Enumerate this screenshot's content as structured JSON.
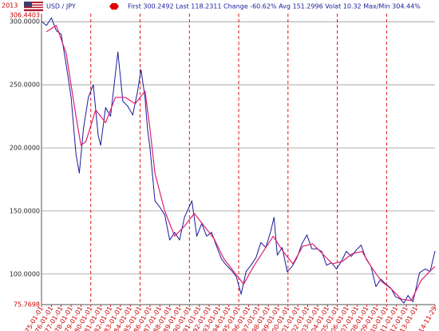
{
  "chart_data": {
    "type": "line",
    "corner_label": "2013",
    "title": "USD / JPY",
    "stats_text": "First 300.2492 Last 118.2311 Change -60.62% Avg 151.2996 Volat 10.32 Max/Min 304.44%",
    "ylim": [
      75.7698,
      306.4403
    ],
    "yticks": [
      {
        "value": 100,
        "label": "100.0000"
      },
      {
        "value": 150,
        "label": "150.0000"
      },
      {
        "value": 200,
        "label": "200.0000"
      },
      {
        "value": 250,
        "label": "250.0000"
      },
      {
        "value": 300,
        "label": "300.0000"
      }
    ],
    "xlim": [
      "1975-01-01",
      "2014-11-29"
    ],
    "xticks": [
      "1975-01-01",
      "1976-01-01",
      "1977-01-01",
      "1978-01-01",
      "1979-01-01",
      "1980-01-01",
      "1981-01-01",
      "1982-01-01",
      "1983-01-01",
      "1984-01-01",
      "1985-01-01",
      "1986-01-01",
      "1987-01-01",
      "1988-01-01",
      "1989-01-01",
      "1990-01-01",
      "1991-01-01",
      "1992-01-01",
      "1993-01-01",
      "1994-01-01",
      "1995-01-01",
      "1996-01-01",
      "1997-01-01",
      "1998-01-01",
      "1999-01-01",
      "2000-01-01",
      "2001-01-01",
      "2002-01-01",
      "2003-01-01",
      "2004-01-01",
      "2005-01-01",
      "2006-01-01",
      "2007-01-01",
      "2008-01-01",
      "2009-01-01",
      "2010-01-01",
      "2011-01-01",
      "2012-01-01",
      "2013-01-01",
      "2014-11-29"
    ],
    "xgrid": [
      "1980-01-01",
      "1985-01-01",
      "1990-01-01",
      "1995-01-01",
      "2000-01-01",
      "2005-01-01",
      "2010-01-01"
    ],
    "grid": true,
    "series": [
      {
        "color": "#1a1a9c",
        "x": [
          "1975-01-01",
          "1975-07-01",
          "1976-01-01",
          "1976-07-01",
          "1977-01-01",
          "1977-07-01",
          "1978-01-01",
          "1978-07-01",
          "1978-11-01",
          "1979-04-01",
          "1979-10-01",
          "1980-04-01",
          "1980-10-01",
          "1981-01-01",
          "1981-07-01",
          "1982-01-01",
          "1982-10-01",
          "1983-04-01",
          "1983-10-01",
          "1984-04-01",
          "1984-10-01",
          "1985-02-01",
          "1985-07-01",
          "1985-10-01",
          "1986-01-01",
          "1986-07-01",
          "1987-01-01",
          "1987-07-01",
          "1988-01-01",
          "1988-07-01",
          "1989-01-01",
          "1989-07-01",
          "1990-04-01",
          "1990-10-01",
          "1991-04-01",
          "1991-10-01",
          "1992-04-01",
          "1992-10-01",
          "1993-04-01",
          "1993-10-01",
          "1994-04-01",
          "1994-10-01",
          "1995-04-01",
          "1995-10-01",
          "1996-04-01",
          "1996-10-01",
          "1997-04-01",
          "1997-10-01",
          "1998-04-01",
          "1998-08-01",
          "1998-12-01",
          "1999-06-01",
          "1999-12-01",
          "2000-06-01",
          "2000-12-01",
          "2001-06-01",
          "2001-12-01",
          "2002-06-01",
          "2002-12-01",
          "2003-06-01",
          "2003-12-01",
          "2004-06-01",
          "2004-12-01",
          "2005-06-01",
          "2005-12-01",
          "2006-06-01",
          "2006-12-01",
          "2007-06-01",
          "2007-12-01",
          "2008-06-01",
          "2008-12-01",
          "2009-06-01",
          "2009-12-01",
          "2010-06-01",
          "2010-12-01",
          "2011-06-01",
          "2011-10-01",
          "2012-03-01",
          "2012-09-01",
          "2013-01-01",
          "2013-05-01",
          "2013-12-01",
          "2014-06-01",
          "2014-11-29"
        ],
        "values": [
          300.2492,
          297,
          303,
          293,
          290,
          266,
          240,
          195,
          180,
          215,
          240,
          250,
          210,
          202,
          232,
          225,
          276,
          237,
          233,
          226,
          245,
          262,
          240,
          215,
          200,
          158,
          153,
          147,
          127,
          133,
          127,
          145,
          158,
          130,
          140,
          130,
          133,
          122,
          112,
          107,
          103,
          98,
          84,
          102,
          107,
          113,
          125,
          121,
          134,
          145,
          115,
          121,
          102,
          106,
          113,
          124,
          131,
          120,
          120,
          118,
          107,
          109,
          104,
          110,
          118,
          114,
          119,
          123,
          112,
          106,
          90,
          96,
          92,
          89,
          82,
          80,
          77,
          83,
          78,
          89,
          101,
          104,
          102,
          118.2311
        ]
      },
      {
        "color": "#e0206e",
        "x": [
          "1975-07-01",
          "1976-07-01",
          "1977-07-01",
          "1978-07-01",
          "1979-01-01",
          "1979-07-01",
          "1980-07-01",
          "1981-07-01",
          "1982-07-01",
          "1983-07-01",
          "1984-07-01",
          "1985-07-01",
          "1986-01-01",
          "1986-07-01",
          "1987-07-01",
          "1988-07-01",
          "1989-07-01",
          "1990-07-01",
          "1991-07-01",
          "1992-07-01",
          "1993-07-01",
          "1994-07-01",
          "1995-07-01",
          "1996-07-01",
          "1997-07-01",
          "1998-07-01",
          "1999-07-01",
          "2000-07-01",
          "2001-07-01",
          "2002-07-01",
          "2003-07-01",
          "2004-07-01",
          "2005-07-01",
          "2006-07-01",
          "2007-07-01",
          "2008-07-01",
          "2009-07-01",
          "2010-07-01",
          "2011-07-01",
          "2012-07-01",
          "2013-07-01",
          "2014-07-01",
          "2014-11-29"
        ],
        "values": [
          292,
          297,
          275,
          225,
          202,
          205,
          230,
          220,
          240,
          240,
          235,
          245,
          215,
          180,
          150,
          130,
          138,
          148,
          138,
          128,
          112,
          102,
          92,
          106,
          118,
          130,
          118,
          108,
          122,
          124,
          116,
          108,
          110,
          116,
          118,
          105,
          94,
          88,
          80,
          79,
          95,
          103,
          106
        ]
      }
    ]
  }
}
